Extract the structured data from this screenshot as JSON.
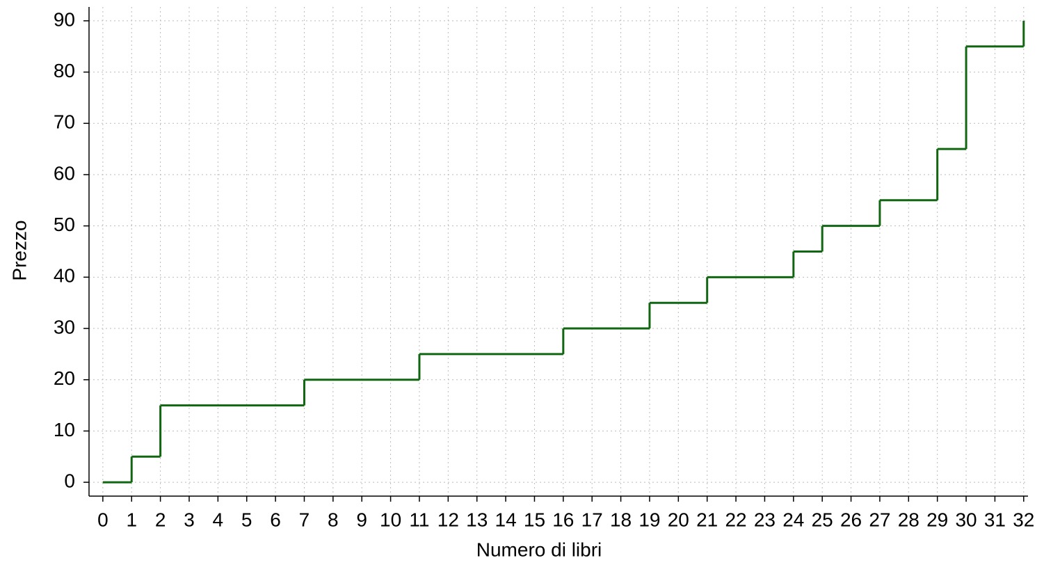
{
  "chart_data": {
    "type": "step",
    "x_label": "Numero di libri",
    "y_label": "Prezzo",
    "x": [
      0,
      1,
      2,
      7,
      11,
      16,
      19,
      21,
      24,
      25,
      27,
      29,
      30,
      32
    ],
    "values": [
      0,
      5,
      15,
      20,
      25,
      30,
      35,
      40,
      45,
      50,
      55,
      65,
      85,
      90
    ],
    "color": "#116611",
    "xlim": [
      -0.48,
      32.15
    ],
    "ylim": [
      -2.7,
      92.7
    ],
    "xticks": [
      0,
      1,
      2,
      3,
      4,
      5,
      6,
      7,
      8,
      9,
      10,
      11,
      12,
      13,
      14,
      15,
      16,
      17,
      18,
      19,
      20,
      21,
      22,
      23,
      24,
      25,
      26,
      27,
      28,
      29,
      30,
      31,
      32
    ],
    "yticks": [
      0,
      10,
      20,
      30,
      40,
      50,
      60,
      70,
      80,
      90
    ],
    "grid": true
  }
}
